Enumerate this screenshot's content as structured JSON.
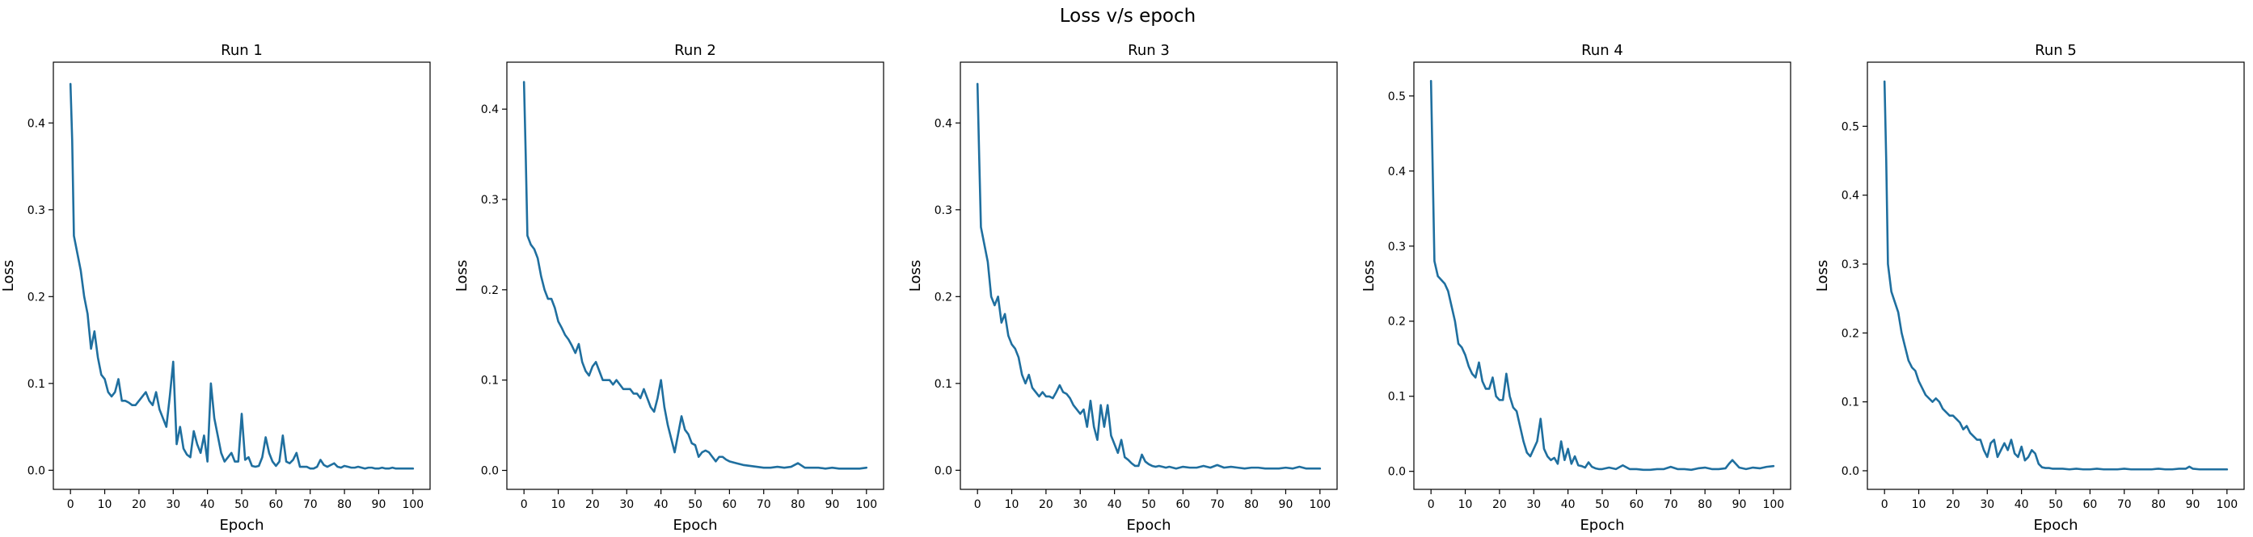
{
  "figure": {
    "suptitle": "Loss v/s epoch"
  },
  "chart_data": [
    {
      "type": "line",
      "title": "Run 1",
      "xlabel": "Epoch",
      "ylabel": "Loss",
      "xlim": [
        -5,
        105
      ],
      "ylim": [
        -0.022,
        0.47
      ],
      "xticks": [
        0,
        10,
        20,
        30,
        40,
        50,
        60,
        70,
        80,
        90,
        100
      ],
      "yticks": [
        0.0,
        0.1,
        0.2,
        0.3,
        0.4
      ],
      "line_color": "#1f6f9f",
      "series": [
        {
          "x": [
            0,
            0.5,
            1,
            2,
            3,
            4,
            5,
            6,
            7,
            8,
            9,
            10,
            11,
            12,
            13,
            14,
            15,
            16,
            17,
            18,
            19,
            20,
            21,
            22,
            23,
            24,
            25,
            26,
            27,
            28,
            29,
            30,
            31,
            32,
            33,
            34,
            35,
            36,
            37,
            38,
            39,
            40,
            41,
            42,
            43,
            44,
            45,
            46,
            47,
            48,
            49,
            50,
            51,
            52,
            53,
            54,
            55,
            56,
            57,
            58,
            59,
            60,
            61,
            62,
            63,
            64,
            65,
            66,
            67,
            68,
            69,
            70,
            71,
            72,
            73,
            74,
            75,
            76,
            77,
            78,
            79,
            80,
            81,
            82,
            83,
            84,
            85,
            86,
            87,
            88,
            89,
            90,
            91,
            92,
            93,
            94,
            95,
            96,
            97,
            98,
            99,
            100
          ],
          "y": [
            0.445,
            0.38,
            0.27,
            0.25,
            0.23,
            0.2,
            0.18,
            0.14,
            0.16,
            0.13,
            0.11,
            0.105,
            0.09,
            0.085,
            0.09,
            0.105,
            0.08,
            0.08,
            0.078,
            0.075,
            0.075,
            0.08,
            0.085,
            0.09,
            0.08,
            0.075,
            0.09,
            0.07,
            0.06,
            0.05,
            0.085,
            0.125,
            0.03,
            0.05,
            0.025,
            0.018,
            0.015,
            0.045,
            0.03,
            0.02,
            0.04,
            0.01,
            0.1,
            0.06,
            0.04,
            0.02,
            0.01,
            0.015,
            0.02,
            0.01,
            0.01,
            0.065,
            0.012,
            0.015,
            0.005,
            0.004,
            0.005,
            0.015,
            0.038,
            0.02,
            0.01,
            0.005,
            0.01,
            0.04,
            0.01,
            0.008,
            0.012,
            0.02,
            0.004,
            0.004,
            0.004,
            0.002,
            0.002,
            0.004,
            0.012,
            0.006,
            0.004,
            0.006,
            0.008,
            0.004,
            0.003,
            0.005,
            0.004,
            0.003,
            0.003,
            0.004,
            0.003,
            0.002,
            0.003,
            0.003,
            0.002,
            0.002,
            0.003,
            0.002,
            0.002,
            0.003,
            0.002,
            0.002,
            0.002,
            0.002,
            0.002,
            0.002
          ]
        }
      ]
    },
    {
      "type": "line",
      "title": "Run 2",
      "xlabel": "Epoch",
      "ylabel": "Loss",
      "xlim": [
        -5,
        105
      ],
      "ylim": [
        -0.021,
        0.452
      ],
      "xticks": [
        0,
        10,
        20,
        30,
        40,
        50,
        60,
        70,
        80,
        90,
        100
      ],
      "yticks": [
        0.0,
        0.1,
        0.2,
        0.3,
        0.4
      ],
      "line_color": "#1f6f9f",
      "series": [
        {
          "x": [
            0,
            0.5,
            1,
            2,
            3,
            4,
            5,
            6,
            7,
            8,
            9,
            10,
            11,
            12,
            13,
            14,
            15,
            16,
            17,
            18,
            19,
            20,
            21,
            22,
            23,
            24,
            25,
            26,
            27,
            28,
            29,
            30,
            31,
            32,
            33,
            34,
            35,
            36,
            37,
            38,
            39,
            40,
            41,
            42,
            43,
            44,
            45,
            46,
            47,
            48,
            49,
            50,
            51,
            52,
            53,
            54,
            55,
            56,
            57,
            58,
            59,
            60,
            62,
            64,
            66,
            68,
            70,
            72,
            74,
            76,
            78,
            80,
            82,
            84,
            86,
            88,
            90,
            92,
            94,
            96,
            98,
            100
          ],
          "y": [
            0.43,
            0.35,
            0.26,
            0.25,
            0.245,
            0.235,
            0.215,
            0.2,
            0.19,
            0.19,
            0.18,
            0.165,
            0.158,
            0.15,
            0.145,
            0.138,
            0.13,
            0.14,
            0.12,
            0.11,
            0.105,
            0.115,
            0.12,
            0.11,
            0.1,
            0.1,
            0.1,
            0.095,
            0.1,
            0.095,
            0.09,
            0.09,
            0.09,
            0.085,
            0.085,
            0.08,
            0.09,
            0.08,
            0.07,
            0.065,
            0.08,
            0.1,
            0.07,
            0.05,
            0.035,
            0.02,
            0.04,
            0.06,
            0.045,
            0.04,
            0.03,
            0.028,
            0.015,
            0.02,
            0.022,
            0.02,
            0.015,
            0.01,
            0.015,
            0.015,
            0.012,
            0.01,
            0.008,
            0.006,
            0.005,
            0.004,
            0.003,
            0.003,
            0.004,
            0.003,
            0.004,
            0.008,
            0.003,
            0.003,
            0.003,
            0.002,
            0.003,
            0.002,
            0.002,
            0.002,
            0.002,
            0.003
          ]
        }
      ]
    },
    {
      "type": "line",
      "title": "Run 3",
      "xlabel": "Epoch",
      "ylabel": "Loss",
      "xlim": [
        -5,
        105
      ],
      "ylim": [
        -0.022,
        0.47
      ],
      "xticks": [
        0,
        10,
        20,
        30,
        40,
        50,
        60,
        70,
        80,
        90,
        100
      ],
      "yticks": [
        0.0,
        0.1,
        0.2,
        0.3,
        0.4
      ],
      "line_color": "#1f6f9f",
      "series": [
        {
          "x": [
            0,
            0.5,
            1,
            2,
            3,
            4,
            5,
            6,
            7,
            8,
            9,
            10,
            11,
            12,
            13,
            14,
            15,
            16,
            17,
            18,
            19,
            20,
            21,
            22,
            23,
            24,
            25,
            26,
            27,
            28,
            29,
            30,
            31,
            32,
            33,
            34,
            35,
            36,
            37,
            38,
            39,
            40,
            41,
            42,
            43,
            44,
            45,
            46,
            47,
            48,
            49,
            50,
            51,
            52,
            53,
            54,
            55,
            56,
            57,
            58,
            59,
            60,
            62,
            64,
            66,
            68,
            70,
            72,
            74,
            76,
            78,
            80,
            82,
            84,
            86,
            88,
            90,
            92,
            94,
            96,
            98,
            100
          ],
          "y": [
            0.445,
            0.36,
            0.28,
            0.26,
            0.24,
            0.2,
            0.19,
            0.2,
            0.17,
            0.18,
            0.155,
            0.145,
            0.14,
            0.13,
            0.11,
            0.1,
            0.11,
            0.095,
            0.09,
            0.085,
            0.09,
            0.085,
            0.085,
            0.083,
            0.09,
            0.098,
            0.09,
            0.088,
            0.083,
            0.075,
            0.07,
            0.065,
            0.07,
            0.05,
            0.08,
            0.05,
            0.035,
            0.075,
            0.05,
            0.075,
            0.04,
            0.03,
            0.02,
            0.035,
            0.015,
            0.012,
            0.008,
            0.005,
            0.005,
            0.018,
            0.01,
            0.007,
            0.005,
            0.004,
            0.005,
            0.004,
            0.003,
            0.004,
            0.003,
            0.002,
            0.003,
            0.004,
            0.003,
            0.003,
            0.005,
            0.003,
            0.006,
            0.003,
            0.004,
            0.003,
            0.002,
            0.003,
            0.003,
            0.002,
            0.002,
            0.002,
            0.003,
            0.002,
            0.004,
            0.002,
            0.002,
            0.002
          ]
        }
      ]
    },
    {
      "type": "line",
      "title": "Run 4",
      "xlabel": "Epoch",
      "ylabel": "Loss",
      "xlim": [
        -5,
        105
      ],
      "ylim": [
        -0.024,
        0.545
      ],
      "xticks": [
        0,
        10,
        20,
        30,
        40,
        50,
        60,
        70,
        80,
        90,
        100
      ],
      "yticks": [
        0.0,
        0.1,
        0.2,
        0.3,
        0.4,
        0.5
      ],
      "line_color": "#1f6f9f",
      "series": [
        {
          "x": [
            0,
            0.5,
            1,
            2,
            3,
            4,
            5,
            6,
            7,
            8,
            9,
            10,
            11,
            12,
            13,
            14,
            15,
            16,
            17,
            18,
            19,
            20,
            21,
            22,
            23,
            24,
            25,
            26,
            27,
            28,
            29,
            30,
            31,
            32,
            33,
            34,
            35,
            36,
            37,
            38,
            39,
            40,
            41,
            42,
            43,
            44,
            45,
            46,
            47,
            48,
            49,
            50,
            52,
            54,
            56,
            58,
            60,
            62,
            64,
            66,
            68,
            70,
            72,
            74,
            76,
            78,
            80,
            82,
            84,
            86,
            87,
            88,
            89,
            90,
            92,
            94,
            96,
            98,
            100
          ],
          "y": [
            0.52,
            0.4,
            0.28,
            0.26,
            0.255,
            0.25,
            0.24,
            0.22,
            0.2,
            0.17,
            0.165,
            0.155,
            0.14,
            0.13,
            0.125,
            0.145,
            0.12,
            0.11,
            0.11,
            0.125,
            0.1,
            0.095,
            0.095,
            0.13,
            0.1,
            0.085,
            0.08,
            0.06,
            0.04,
            0.025,
            0.02,
            0.03,
            0.04,
            0.07,
            0.03,
            0.02,
            0.015,
            0.018,
            0.01,
            0.04,
            0.015,
            0.03,
            0.01,
            0.02,
            0.008,
            0.007,
            0.005,
            0.012,
            0.006,
            0.004,
            0.003,
            0.003,
            0.005,
            0.003,
            0.008,
            0.003,
            0.003,
            0.002,
            0.002,
            0.003,
            0.003,
            0.006,
            0.003,
            0.003,
            0.002,
            0.004,
            0.005,
            0.003,
            0.003,
            0.004,
            0.01,
            0.015,
            0.01,
            0.005,
            0.003,
            0.005,
            0.004,
            0.006,
            0.007
          ]
        }
      ]
    },
    {
      "type": "line",
      "title": "Run 5",
      "xlabel": "Epoch",
      "ylabel": "Loss",
      "xlim": [
        -5,
        105
      ],
      "ylim": [
        -0.027,
        0.593
      ],
      "xticks": [
        0,
        10,
        20,
        30,
        40,
        50,
        60,
        70,
        80,
        90,
        100
      ],
      "yticks": [
        0.0,
        0.1,
        0.2,
        0.3,
        0.4,
        0.5
      ],
      "line_color": "#1f6f9f",
      "series": [
        {
          "x": [
            0,
            0.5,
            1,
            2,
            3,
            4,
            5,
            6,
            7,
            8,
            9,
            10,
            11,
            12,
            13,
            14,
            15,
            16,
            17,
            18,
            19,
            20,
            21,
            22,
            23,
            24,
            25,
            26,
            27,
            28,
            29,
            30,
            31,
            32,
            33,
            34,
            35,
            36,
            37,
            38,
            39,
            40,
            41,
            42,
            43,
            44,
            45,
            46,
            47,
            48,
            49,
            50,
            52,
            54,
            56,
            58,
            60,
            62,
            64,
            66,
            68,
            70,
            72,
            74,
            76,
            78,
            80,
            82,
            84,
            86,
            88,
            89,
            90,
            92,
            94,
            96,
            98,
            100
          ],
          "y": [
            0.565,
            0.45,
            0.3,
            0.26,
            0.245,
            0.23,
            0.2,
            0.18,
            0.16,
            0.15,
            0.145,
            0.13,
            0.12,
            0.11,
            0.105,
            0.1,
            0.105,
            0.1,
            0.09,
            0.085,
            0.08,
            0.08,
            0.075,
            0.07,
            0.06,
            0.065,
            0.055,
            0.05,
            0.045,
            0.045,
            0.03,
            0.02,
            0.04,
            0.045,
            0.02,
            0.03,
            0.04,
            0.03,
            0.045,
            0.025,
            0.02,
            0.035,
            0.015,
            0.02,
            0.03,
            0.025,
            0.01,
            0.005,
            0.004,
            0.004,
            0.003,
            0.003,
            0.003,
            0.002,
            0.003,
            0.002,
            0.002,
            0.003,
            0.002,
            0.002,
            0.002,
            0.003,
            0.002,
            0.002,
            0.002,
            0.002,
            0.003,
            0.002,
            0.002,
            0.003,
            0.003,
            0.006,
            0.003,
            0.002,
            0.002,
            0.002,
            0.002,
            0.002
          ]
        }
      ]
    }
  ]
}
